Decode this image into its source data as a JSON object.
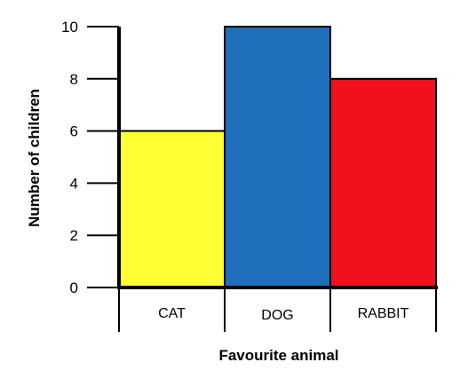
{
  "chart_data": {
    "type": "bar",
    "title": "",
    "xlabel": "Favourite animal",
    "ylabel": "Number of children",
    "categories": [
      "CAT",
      "DOG",
      "RABBIT"
    ],
    "values": [
      6,
      10,
      8
    ],
    "colors": [
      "#ffff33",
      "#1f6fbd",
      "#f0101e"
    ],
    "ylim": [
      0,
      10
    ],
    "yticks": [
      0,
      2,
      4,
      6,
      8,
      10
    ],
    "grid": false,
    "legend": "none"
  }
}
